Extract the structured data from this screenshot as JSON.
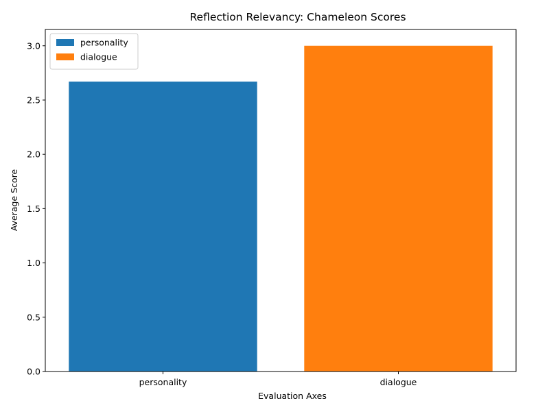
{
  "chart_data": {
    "type": "bar",
    "title": "Reflection Relevancy: Chameleon Scores",
    "xlabel": "Evaluation Axes",
    "ylabel": "Average Score",
    "categories": [
      "personality",
      "dialogue"
    ],
    "series": [
      {
        "name": "personality",
        "category": "personality",
        "value": 2.67,
        "color": "#1f77b4"
      },
      {
        "name": "dialogue",
        "category": "dialogue",
        "value": 3.0,
        "color": "#ff7f0e"
      }
    ],
    "ylim": [
      0,
      3.15
    ],
    "yticks": [
      "0.0",
      "0.5",
      "1.0",
      "1.5",
      "2.0",
      "2.5",
      "3.0"
    ],
    "grid": false,
    "legend_position": "top-left"
  }
}
